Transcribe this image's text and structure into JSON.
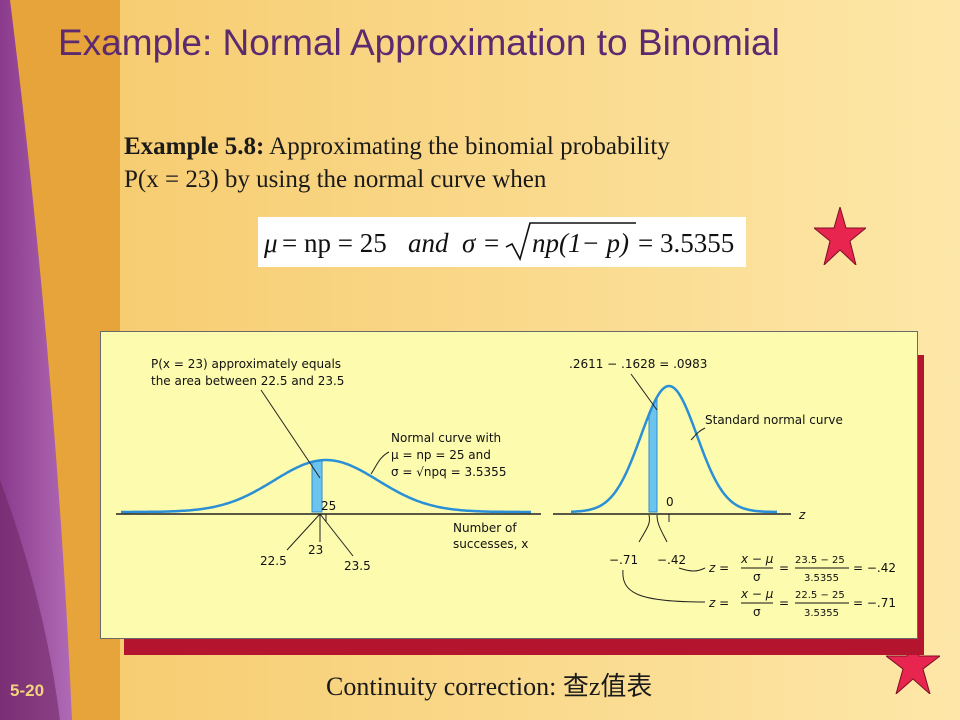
{
  "title": "Example:  Normal Approximation to Binomial",
  "example": {
    "label": "Example 5.8:",
    "text1": " Approximating the binomial probability",
    "text2": "P(x = 23) by using the normal curve when"
  },
  "formula": {
    "mu": "μ",
    "eq1": "= np = 25",
    "and": "and",
    "sigma": "σ",
    "eq2": "=",
    "radicand": "np(1− p)",
    "eq3": "= 3.5355"
  },
  "figure": {
    "left_label_line1": "P(x = 23) approximately equals",
    "left_label_line2": "the area between 22.5 and 23.5",
    "normal_curve_line1": "Normal curve with",
    "normal_curve_line2": "μ = np = 25 and",
    "normal_curve_line3": "σ = √npq = 3.5355",
    "tick_25": "25",
    "tick_23": "23",
    "tick_225": "22.5",
    "tick_235": "23.5",
    "xlabel_line1": "Number of",
    "xlabel_line2": "successes, x",
    "right_top": ".2611 − .1628 = .0983",
    "std_normal": "Standard normal curve",
    "tick_0": "0",
    "z_axis": "z",
    "z_neg71": "−.71",
    "z_neg42": "−.42",
    "z_formula1": "z = (x − μ)/σ = (23.5 − 25)/3.5355 = −.42",
    "z_formula2": "z = (x − μ)/σ = (22.5 − 25)/3.5355 = −.71",
    "z_eq_a": "z =",
    "frac_top_a": "x − μ",
    "frac_bot_a": "σ",
    "eq_a": "=",
    "num_1": "23.5 − 25",
    "den_1": "3.5355",
    "res_1": "= −.42",
    "num_2": "22.5 − 25",
    "den_2": "3.5355",
    "res_2": "= −.71"
  },
  "caption": "Continuity correction: 查z值表",
  "slide_number": "5-20",
  "colors": {
    "title": "#5c2a6e",
    "curve": "#2a8fd6",
    "shade": "#6cc3ee",
    "star": "#e8254e",
    "figure_bg": "#fdfbae",
    "shadow": "#b4142e"
  }
}
